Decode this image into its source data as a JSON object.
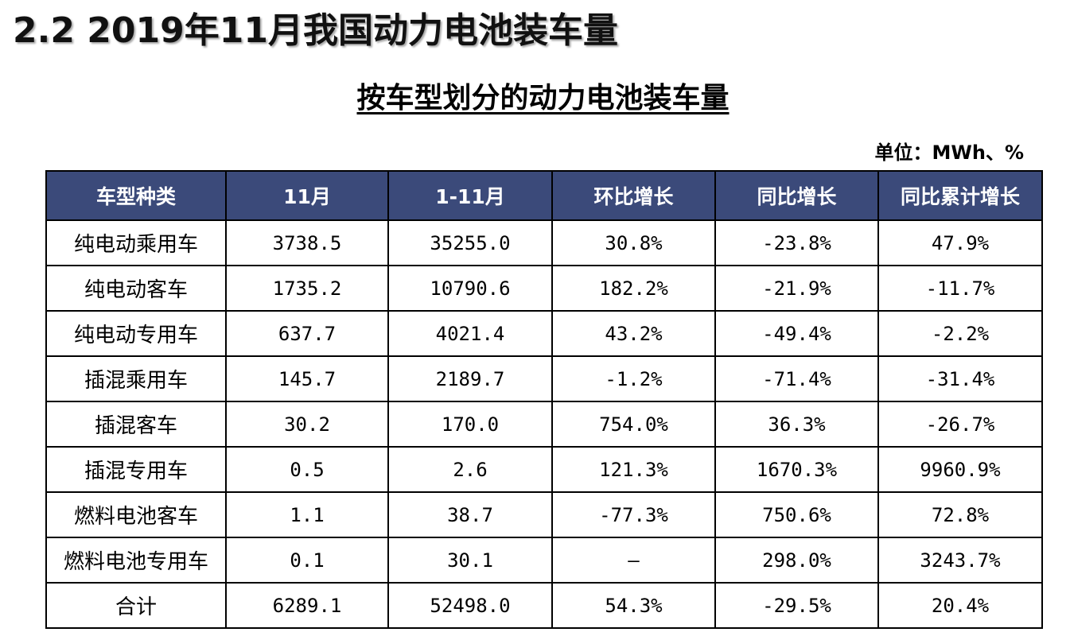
{
  "slide_title": "2.2 2019年11月我国动力电池装车量",
  "table_title": "按车型划分的动力电池装车量",
  "unit": "单位：MWh、%",
  "colors": {
    "header_bg": "#3b4a7a",
    "header_text": "#ffffff",
    "border": "#000000"
  },
  "table": {
    "headers": [
      "车型种类",
      "11月",
      "1-11月",
      "环比增长",
      "同比增长",
      "同比累计增长"
    ],
    "rows": [
      [
        "纯电动乘用车",
        "3738.5",
        "35255.0",
        "30.8%",
        "-23.8%",
        "47.9%"
      ],
      [
        "纯电动客车",
        "1735.2",
        "10790.6",
        "182.2%",
        "-21.9%",
        "-11.7%"
      ],
      [
        "纯电动专用车",
        "637.7",
        "4021.4",
        "43.2%",
        "-49.4%",
        "-2.2%"
      ],
      [
        "插混乘用车",
        "145.7",
        "2189.7",
        "-1.2%",
        "-71.4%",
        "-31.4%"
      ],
      [
        "插混客车",
        "30.2",
        "170.0",
        "754.0%",
        "36.3%",
        "-26.7%"
      ],
      [
        "插混专用车",
        "0.5",
        "2.6",
        "121.3%",
        "1670.3%",
        "9960.9%"
      ],
      [
        "燃料电池客车",
        "1.1",
        "38.7",
        "-77.3%",
        "750.6%",
        "72.8%"
      ],
      [
        "燃料电池专用车",
        "0.1",
        "30.1",
        "—",
        "298.0%",
        "3243.7%"
      ],
      [
        "合计",
        "6289.1",
        "52498.0",
        "54.3%",
        "-29.5%",
        "20.4%"
      ]
    ]
  }
}
